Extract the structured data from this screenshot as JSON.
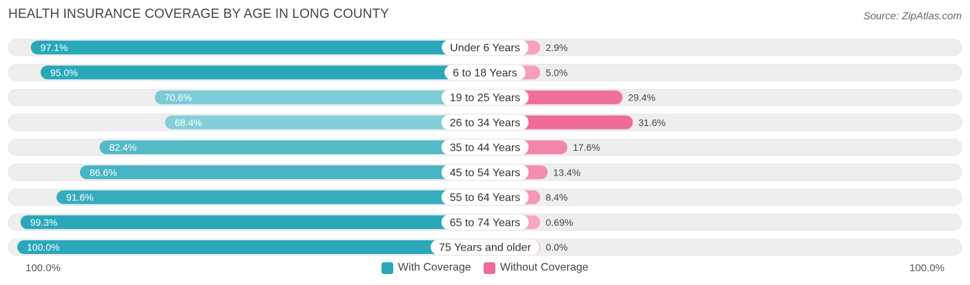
{
  "title": "HEALTH INSURANCE COVERAGE BY AGE IN LONG COUNTY",
  "source": "Source: ZipAtlas.com",
  "colors": {
    "with_dark": "#2aa8ba",
    "with_light": "#8ed3dc",
    "without_dark": "#f06b95",
    "without_light": "#f7a8c1",
    "track": "#eeeeee"
  },
  "chart_data": {
    "type": "bar",
    "orientation": "horizontal-diverging",
    "categories": [
      "Under 6 Years",
      "6 to 18 Years",
      "19 to 25 Years",
      "26 to 34 Years",
      "35 to 44 Years",
      "45 to 54 Years",
      "55 to 64 Years",
      "65 to 74 Years",
      "75 Years and older"
    ],
    "series": [
      {
        "name": "With Coverage",
        "values": [
          97.1,
          95.0,
          70.6,
          68.4,
          82.4,
          86.6,
          91.6,
          99.3,
          100.0
        ],
        "labels": [
          "97.1%",
          "95.0%",
          "70.6%",
          "68.4%",
          "82.4%",
          "86.6%",
          "91.6%",
          "99.3%",
          "100.0%"
        ]
      },
      {
        "name": "Without Coverage",
        "values": [
          2.9,
          5.0,
          29.4,
          31.6,
          17.6,
          13.4,
          8.4,
          0.69,
          0.0
        ],
        "labels": [
          "2.9%",
          "5.0%",
          "29.4%",
          "31.6%",
          "17.6%",
          "13.4%",
          "8.4%",
          "0.69%",
          "0.0%"
        ]
      }
    ],
    "xlim": [
      -100,
      100
    ],
    "axis_left_label": "100.0%",
    "axis_right_label": "100.0%",
    "legend": [
      "With Coverage",
      "Without Coverage"
    ],
    "legend_position": "bottom-center"
  }
}
